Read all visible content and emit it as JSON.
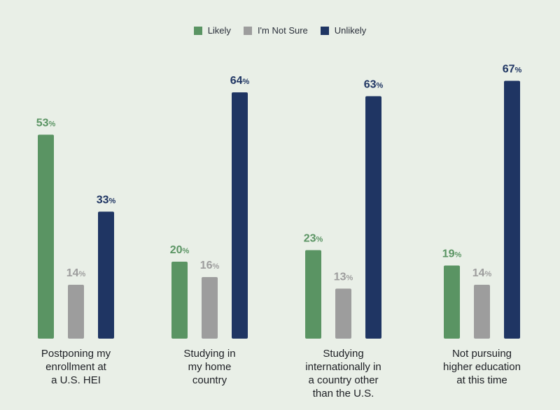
{
  "chart_data": {
    "type": "bar",
    "categories": [
      "Postponing my enrollment at a U.S. HEI",
      "Studying in my home country",
      "Studying internationally in a country other than the U.S.",
      "Not pursuing higher education at this time"
    ],
    "category_lines": [
      [
        "Postponing my",
        "enrollment at",
        "a U.S. HEI"
      ],
      [
        "Studying in",
        "my home",
        "country"
      ],
      [
        "Studying",
        "internationally in",
        "a country other",
        "than the U.S."
      ],
      [
        "Not pursuing",
        "higher education",
        "at this time"
      ]
    ],
    "series": [
      {
        "name": "Likely",
        "values": [
          53,
          20,
          23,
          19
        ],
        "color": "#5a9463"
      },
      {
        "name": "I'm Not Sure",
        "values": [
          14,
          16,
          13,
          14
        ],
        "color": "#9d9d9d"
      },
      {
        "name": "Unlikely",
        "values": [
          33,
          64,
          63,
          67
        ],
        "color": "#1f3563"
      }
    ],
    "value_suffix": "%",
    "ylim": [
      0,
      100
    ],
    "legend_position": "top-center",
    "grid": false,
    "axes_visible": false
  }
}
